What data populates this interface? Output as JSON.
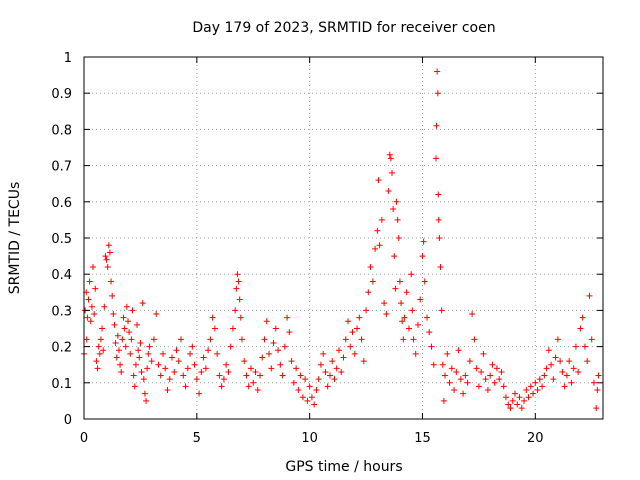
{
  "chart_data": {
    "type": "scatter",
    "title": "Day 179 of 2023, SRMTID for receiver coen",
    "xlabel": "GPS time / hours",
    "ylabel": "SRMTID / TECUs",
    "xlim": [
      0,
      23
    ],
    "ylim": [
      0,
      1
    ],
    "xticks": [
      0,
      5,
      10,
      15,
      20
    ],
    "xtick_labels": [
      "0",
      "5",
      "10",
      "15",
      "20"
    ],
    "yticks": [
      0,
      0.1,
      0.2,
      0.3,
      0.4,
      0.5,
      0.6,
      0.7,
      0.8,
      0.9,
      1
    ],
    "ytick_labels": [
      "0",
      "0.1",
      "0.2",
      "0.3",
      "0.4",
      "0.5",
      "0.6",
      "0.7",
      "0.8",
      "0.9",
      "1"
    ],
    "grid": true,
    "marker": "+",
    "marker_color": "#ff0000",
    "series": [
      {
        "name": "SRMTID",
        "points": [
          [
            0.0,
            0.18
          ],
          [
            0.05,
            0.3
          ],
          [
            0.1,
            0.35
          ],
          [
            0.12,
            0.22
          ],
          [
            0.15,
            0.28
          ],
          [
            0.2,
            0.33
          ],
          [
            0.25,
            0.38
          ],
          [
            0.3,
            0.27
          ],
          [
            0.35,
            0.31
          ],
          [
            0.4,
            0.42
          ],
          [
            0.45,
            0.29
          ],
          [
            0.5,
            0.36
          ],
          [
            0.55,
            0.16
          ],
          [
            0.6,
            0.14
          ],
          [
            0.65,
            0.2
          ],
          [
            0.7,
            0.18
          ],
          [
            0.75,
            0.22
          ],
          [
            0.8,
            0.25
          ],
          [
            0.85,
            0.19
          ],
          [
            0.9,
            0.31
          ],
          [
            0.95,
            0.45
          ],
          [
            1.0,
            0.44
          ],
          [
            1.05,
            0.42
          ],
          [
            1.1,
            0.48
          ],
          [
            1.15,
            0.46
          ],
          [
            1.2,
            0.38
          ],
          [
            1.25,
            0.34
          ],
          [
            1.3,
            0.29
          ],
          [
            1.35,
            0.26
          ],
          [
            1.4,
            0.21
          ],
          [
            1.45,
            0.17
          ],
          [
            1.5,
            0.23
          ],
          [
            1.55,
            0.19
          ],
          [
            1.6,
            0.15
          ],
          [
            1.65,
            0.13
          ],
          [
            1.7,
            0.22
          ],
          [
            1.75,
            0.28
          ],
          [
            1.8,
            0.25
          ],
          [
            1.85,
            0.2
          ],
          [
            1.9,
            0.31
          ],
          [
            1.95,
            0.27
          ],
          [
            2.0,
            0.24
          ],
          [
            2.05,
            0.18
          ],
          [
            2.1,
            0.22
          ],
          [
            2.15,
            0.3
          ],
          [
            2.2,
            0.12
          ],
          [
            2.25,
            0.09
          ],
          [
            2.3,
            0.15
          ],
          [
            2.35,
            0.26
          ],
          [
            2.4,
            0.19
          ],
          [
            2.45,
            0.17
          ],
          [
            2.5,
            0.21
          ],
          [
            2.55,
            0.13
          ],
          [
            2.6,
            0.32
          ],
          [
            2.65,
            0.11
          ],
          [
            2.7,
            0.07
          ],
          [
            2.75,
            0.05
          ],
          [
            2.8,
            0.14
          ],
          [
            2.85,
            0.18
          ],
          [
            2.9,
            0.2
          ],
          [
            3.0,
            0.16
          ],
          [
            3.1,
            0.22
          ],
          [
            3.2,
            0.29
          ],
          [
            3.3,
            0.15
          ],
          [
            3.4,
            0.12
          ],
          [
            3.5,
            0.18
          ],
          [
            3.6,
            0.14
          ],
          [
            3.7,
            0.08
          ],
          [
            3.8,
            0.11
          ],
          [
            3.9,
            0.17
          ],
          [
            4.0,
            0.13
          ],
          [
            4.1,
            0.19
          ],
          [
            4.2,
            0.16
          ],
          [
            4.3,
            0.22
          ],
          [
            4.4,
            0.12
          ],
          [
            4.5,
            0.09
          ],
          [
            4.6,
            0.14
          ],
          [
            4.7,
            0.18
          ],
          [
            4.8,
            0.2
          ],
          [
            4.9,
            0.15
          ],
          [
            5.0,
            0.11
          ],
          [
            5.1,
            0.07
          ],
          [
            5.2,
            0.13
          ],
          [
            5.3,
            0.17
          ],
          [
            5.4,
            0.14
          ],
          [
            5.5,
            0.19
          ],
          [
            5.6,
            0.22
          ],
          [
            5.7,
            0.28
          ],
          [
            5.8,
            0.25
          ],
          [
            5.9,
            0.18
          ],
          [
            6.0,
            0.12
          ],
          [
            6.1,
            0.09
          ],
          [
            6.2,
            0.11
          ],
          [
            6.3,
            0.15
          ],
          [
            6.4,
            0.13
          ],
          [
            6.5,
            0.2
          ],
          [
            6.6,
            0.25
          ],
          [
            6.7,
            0.3
          ],
          [
            6.75,
            0.36
          ],
          [
            6.8,
            0.4
          ],
          [
            6.85,
            0.38
          ],
          [
            6.9,
            0.33
          ],
          [
            6.95,
            0.28
          ],
          [
            7.0,
            0.22
          ],
          [
            7.1,
            0.16
          ],
          [
            7.2,
            0.12
          ],
          [
            7.3,
            0.09
          ],
          [
            7.4,
            0.14
          ],
          [
            7.5,
            0.1
          ],
          [
            7.6,
            0.13
          ],
          [
            7.7,
            0.08
          ],
          [
            7.8,
            0.12
          ],
          [
            7.9,
            0.17
          ],
          [
            8.0,
            0.22
          ],
          [
            8.1,
            0.27
          ],
          [
            8.2,
            0.18
          ],
          [
            8.3,
            0.14
          ],
          [
            8.4,
            0.21
          ],
          [
            8.5,
            0.25
          ],
          [
            8.6,
            0.19
          ],
          [
            8.7,
            0.15
          ],
          [
            8.8,
            0.12
          ],
          [
            8.9,
            0.2
          ],
          [
            9.0,
            0.28
          ],
          [
            9.1,
            0.24
          ],
          [
            9.2,
            0.16
          ],
          [
            9.3,
            0.1
          ],
          [
            9.4,
            0.14
          ],
          [
            9.5,
            0.08
          ],
          [
            9.6,
            0.12
          ],
          [
            9.7,
            0.06
          ],
          [
            9.8,
            0.11
          ],
          [
            9.9,
            0.05
          ],
          [
            10.0,
            0.09
          ],
          [
            10.1,
            0.06
          ],
          [
            10.2,
            0.04
          ],
          [
            10.3,
            0.08
          ],
          [
            10.4,
            0.11
          ],
          [
            10.5,
            0.15
          ],
          [
            10.6,
            0.18
          ],
          [
            10.7,
            0.13
          ],
          [
            10.8,
            0.09
          ],
          [
            10.9,
            0.12
          ],
          [
            11.0,
            0.16
          ],
          [
            11.1,
            0.11
          ],
          [
            11.2,
            0.14
          ],
          [
            11.3,
            0.19
          ],
          [
            11.4,
            0.13
          ],
          [
            11.5,
            0.17
          ],
          [
            11.6,
            0.22
          ],
          [
            11.7,
            0.27
          ],
          [
            11.8,
            0.2
          ],
          [
            11.9,
            0.24
          ],
          [
            12.0,
            0.18
          ],
          [
            12.1,
            0.25
          ],
          [
            12.2,
            0.28
          ],
          [
            12.3,
            0.22
          ],
          [
            12.4,
            0.16
          ],
          [
            12.5,
            0.3
          ],
          [
            12.6,
            0.35
          ],
          [
            12.7,
            0.42
          ],
          [
            12.8,
            0.38
          ],
          [
            12.9,
            0.47
          ],
          [
            13.0,
            0.52
          ],
          [
            13.05,
            0.66
          ],
          [
            13.1,
            0.48
          ],
          [
            13.2,
            0.55
          ],
          [
            13.3,
            0.32
          ],
          [
            13.4,
            0.29
          ],
          [
            13.5,
            0.63
          ],
          [
            13.55,
            0.73
          ],
          [
            13.6,
            0.72
          ],
          [
            13.65,
            0.68
          ],
          [
            13.7,
            0.58
          ],
          [
            13.75,
            0.45
          ],
          [
            13.8,
            0.36
          ],
          [
            13.85,
            0.6
          ],
          [
            13.9,
            0.55
          ],
          [
            13.95,
            0.5
          ],
          [
            14.0,
            0.38
          ],
          [
            14.05,
            0.32
          ],
          [
            14.1,
            0.27
          ],
          [
            14.15,
            0.22
          ],
          [
            14.2,
            0.28
          ],
          [
            14.3,
            0.35
          ],
          [
            14.4,
            0.25
          ],
          [
            14.5,
            0.4
          ],
          [
            14.55,
            0.3
          ],
          [
            14.6,
            0.22
          ],
          [
            14.7,
            0.18
          ],
          [
            14.8,
            0.26
          ],
          [
            14.9,
            0.33
          ],
          [
            15.0,
            0.45
          ],
          [
            15.05,
            0.49
          ],
          [
            15.1,
            0.38
          ],
          [
            15.2,
            0.28
          ],
          [
            15.3,
            0.24
          ],
          [
            15.4,
            0.2
          ],
          [
            15.5,
            0.15
          ],
          [
            15.6,
            0.72
          ],
          [
            15.62,
            0.81
          ],
          [
            15.65,
            0.96
          ],
          [
            15.68,
            0.9
          ],
          [
            15.7,
            0.62
          ],
          [
            15.72,
            0.55
          ],
          [
            15.75,
            0.5
          ],
          [
            15.8,
            0.42
          ],
          [
            15.85,
            0.3
          ],
          [
            15.9,
            0.15
          ],
          [
            15.95,
            0.05
          ],
          [
            16.0,
            0.12
          ],
          [
            16.1,
            0.18
          ],
          [
            16.2,
            0.1
          ],
          [
            16.3,
            0.14
          ],
          [
            16.4,
            0.08
          ],
          [
            16.5,
            0.13
          ],
          [
            16.6,
            0.19
          ],
          [
            16.7,
            0.11
          ],
          [
            16.8,
            0.07
          ],
          [
            16.9,
            0.12
          ],
          [
            17.0,
            0.1
          ],
          [
            17.1,
            0.16
          ],
          [
            17.2,
            0.29
          ],
          [
            17.3,
            0.22
          ],
          [
            17.4,
            0.14
          ],
          [
            17.5,
            0.09
          ],
          [
            17.6,
            0.13
          ],
          [
            17.7,
            0.18
          ],
          [
            17.8,
            0.11
          ],
          [
            17.9,
            0.08
          ],
          [
            18.0,
            0.12
          ],
          [
            18.1,
            0.15
          ],
          [
            18.2,
            0.1
          ],
          [
            18.3,
            0.14
          ],
          [
            18.4,
            0.11
          ],
          [
            18.5,
            0.13
          ],
          [
            18.6,
            0.09
          ],
          [
            18.7,
            0.06
          ],
          [
            18.8,
            0.04
          ],
          [
            18.9,
            0.03
          ],
          [
            19.0,
            0.05
          ],
          [
            19.1,
            0.07
          ],
          [
            19.2,
            0.04
          ],
          [
            19.3,
            0.06
          ],
          [
            19.4,
            0.03
          ],
          [
            19.5,
            0.05
          ],
          [
            19.6,
            0.08
          ],
          [
            19.7,
            0.06
          ],
          [
            19.8,
            0.09
          ],
          [
            19.9,
            0.07
          ],
          [
            20.0,
            0.1
          ],
          [
            20.1,
            0.08
          ],
          [
            20.2,
            0.11
          ],
          [
            20.3,
            0.09
          ],
          [
            20.4,
            0.12
          ],
          [
            20.5,
            0.14
          ],
          [
            20.6,
            0.19
          ],
          [
            20.7,
            0.15
          ],
          [
            20.8,
            0.11
          ],
          [
            20.9,
            0.17
          ],
          [
            21.0,
            0.22
          ],
          [
            21.1,
            0.16
          ],
          [
            21.2,
            0.13
          ],
          [
            21.3,
            0.09
          ],
          [
            21.4,
            0.12
          ],
          [
            21.5,
            0.16
          ],
          [
            21.6,
            0.1
          ],
          [
            21.7,
            0.14
          ],
          [
            21.8,
            0.2
          ],
          [
            21.9,
            0.13
          ],
          [
            22.0,
            0.25
          ],
          [
            22.1,
            0.28
          ],
          [
            22.2,
            0.2
          ],
          [
            22.3,
            0.16
          ],
          [
            22.4,
            0.34
          ],
          [
            22.5,
            0.22
          ],
          [
            22.6,
            0.1
          ],
          [
            22.7,
            0.03
          ],
          [
            22.75,
            0.08
          ],
          [
            22.8,
            0.12
          ]
        ]
      }
    ]
  }
}
